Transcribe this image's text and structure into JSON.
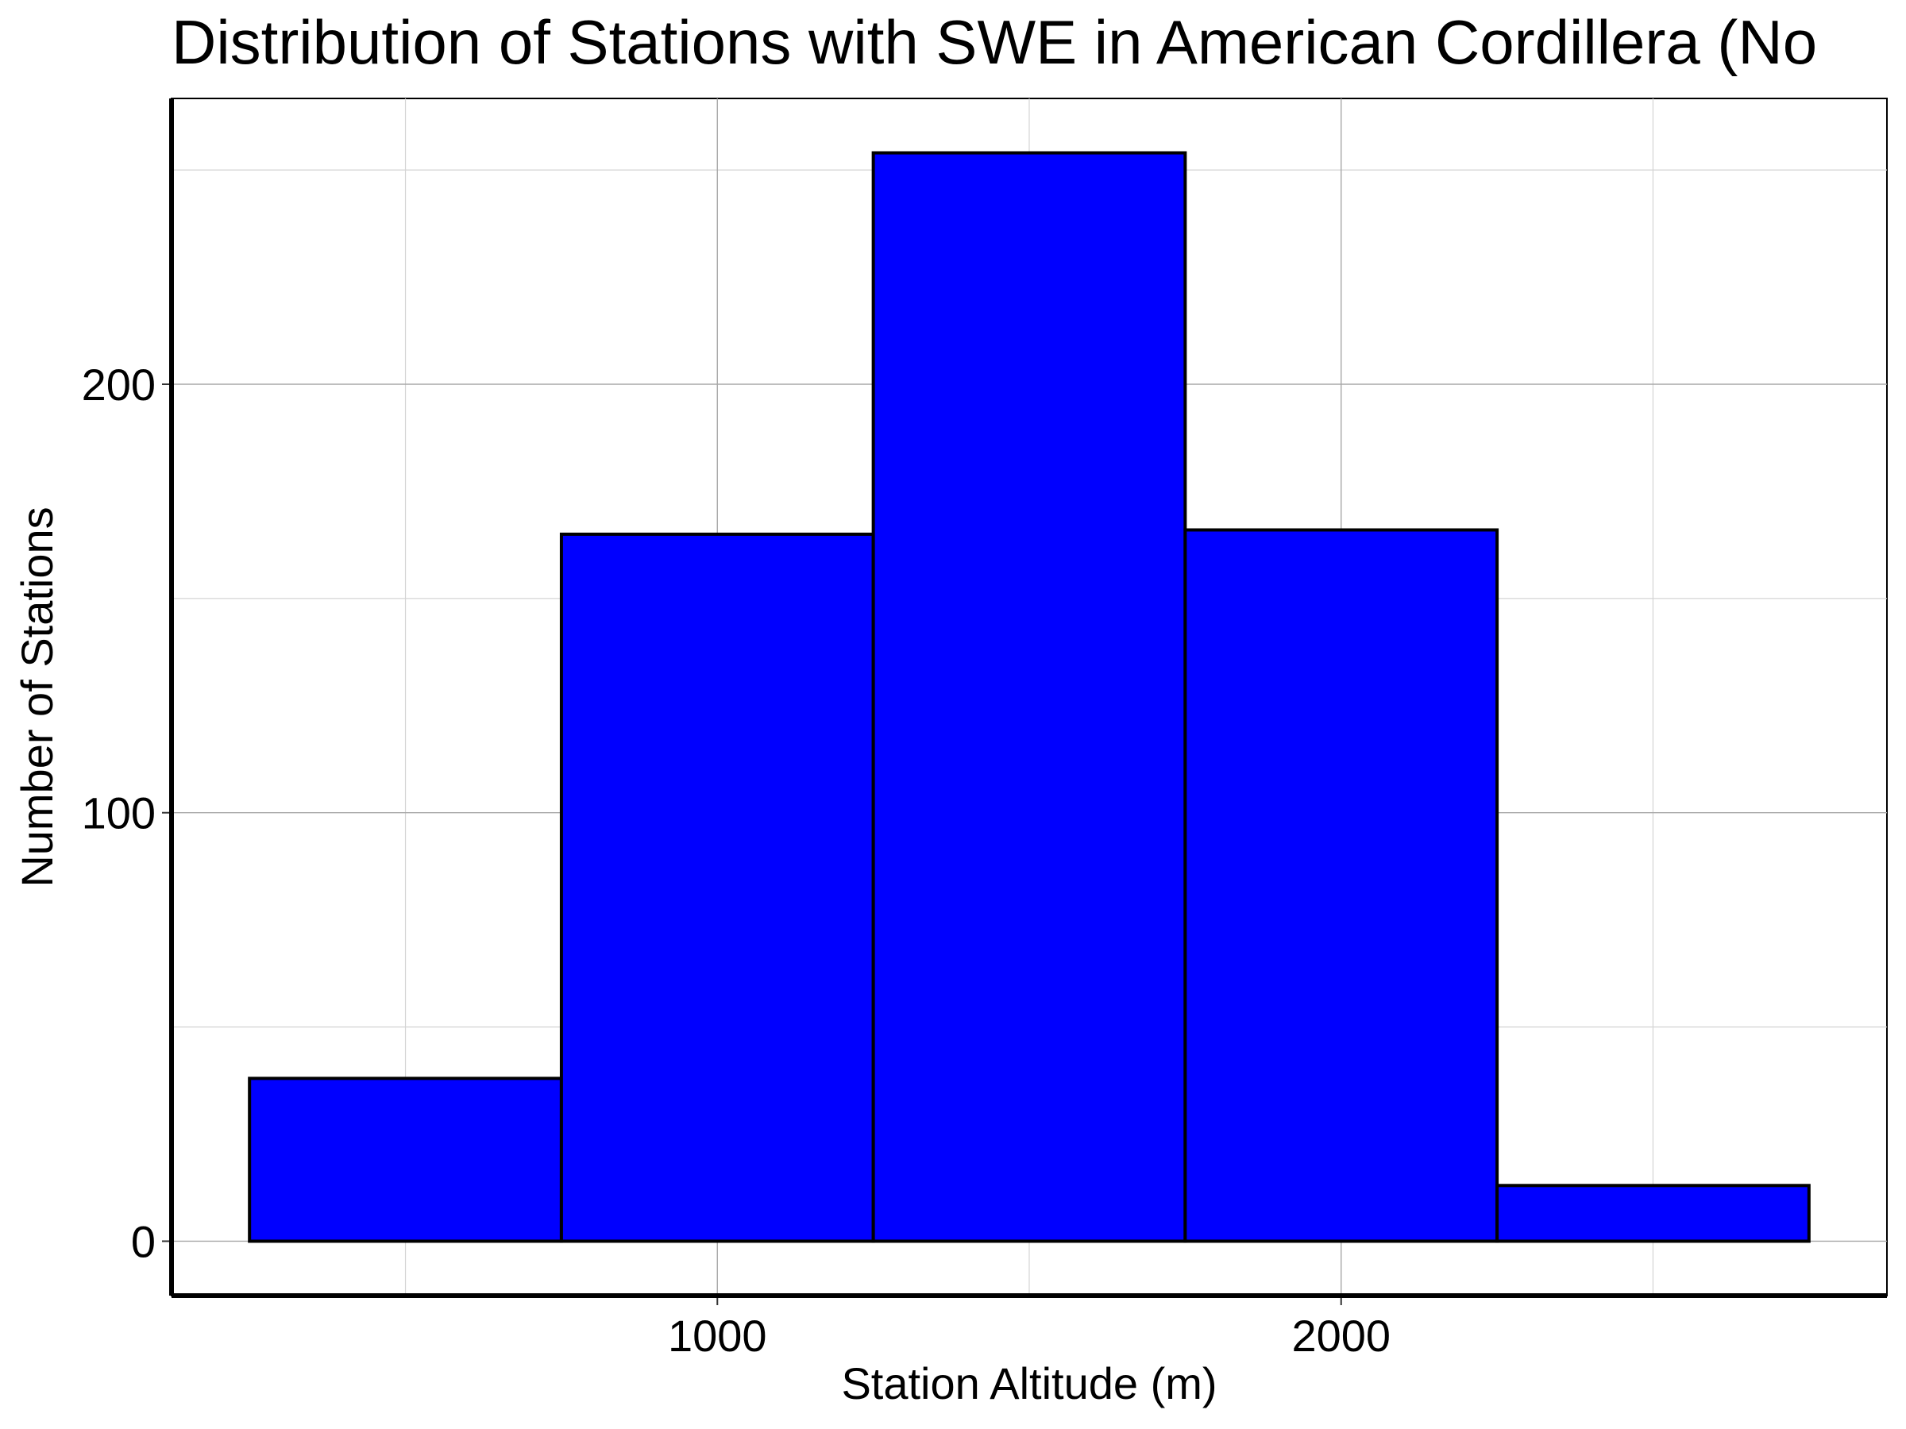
{
  "chart_data": {
    "type": "bar",
    "title": "Distribution of Stations with SWE in American Cordillera (No",
    "xlabel": "Station Altitude (m)",
    "ylabel": "Number of Stations",
    "bins": [
      {
        "x0": 250,
        "x1": 750,
        "value": 38
      },
      {
        "x0": 750,
        "x1": 1250,
        "value": 165
      },
      {
        "x0": 1250,
        "x1": 1750,
        "value": 254
      },
      {
        "x0": 1750,
        "x1": 2250,
        "value": 166
      },
      {
        "x0": 2250,
        "x1": 2750,
        "value": 13
      }
    ],
    "xlim": [
      125,
      2875
    ],
    "ylim": [
      -12.7,
      266.7
    ],
    "x_ticks": [
      1000,
      2000
    ],
    "x_tick_labels": [
      "1000",
      "2000"
    ],
    "x_minor_ticks": [
      500,
      1500,
      2500
    ],
    "y_ticks": [
      0,
      100,
      200
    ],
    "y_tick_labels": [
      "0",
      "100",
      "200"
    ],
    "y_minor_ticks": [
      50,
      150,
      250
    ],
    "grid": true,
    "bar_color": "#0000ff",
    "bar_edge_color": "#000000"
  }
}
